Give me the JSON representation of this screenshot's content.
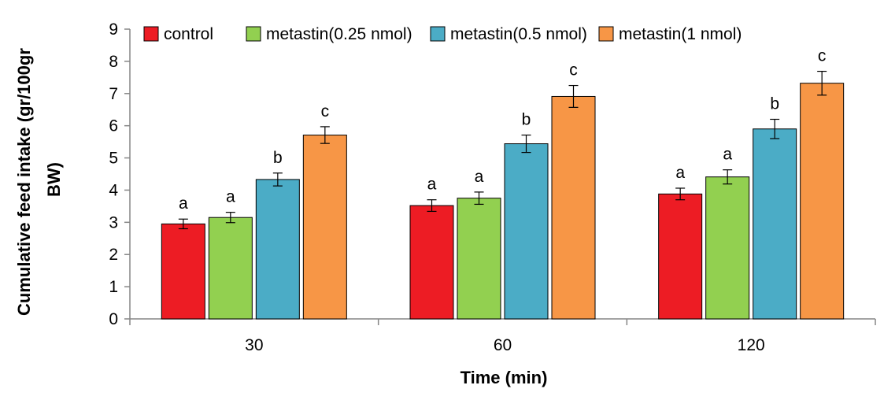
{
  "chart_data": {
    "type": "bar",
    "title": "",
    "xlabel": "Time (min)",
    "ylabel_lines": [
      "Cumulative feed intake (gr/100gr",
      "BW)"
    ],
    "categories": [
      "30",
      "60",
      "120"
    ],
    "ylim": [
      0,
      9
    ],
    "yticks": [
      0,
      1,
      2,
      3,
      4,
      5,
      6,
      7,
      8,
      9
    ],
    "grid": false,
    "legend_position": "top",
    "series": [
      {
        "name": "control",
        "color": "#ED1C24",
        "values": [
          2.95,
          3.52,
          3.88
        ],
        "errors": [
          0.15,
          0.18,
          0.18
        ],
        "labels": [
          "a",
          "a",
          "a"
        ]
      },
      {
        "name": "metastin(0.25 nmol)",
        "color": "#92D050",
        "values": [
          3.15,
          3.75,
          4.41
        ],
        "errors": [
          0.16,
          0.19,
          0.22
        ],
        "labels": [
          "a",
          "a",
          "a"
        ]
      },
      {
        "name": "metastin(0.5 nmol)",
        "color": "#4BACC6",
        "values": [
          4.33,
          5.44,
          5.9
        ],
        "errors": [
          0.2,
          0.27,
          0.3
        ],
        "labels": [
          "b",
          "b",
          "b"
        ]
      },
      {
        "name": "metastin(1 nmol)",
        "color": "#F79646",
        "values": [
          5.71,
          6.91,
          7.32
        ],
        "errors": [
          0.26,
          0.34,
          0.37
        ],
        "labels": [
          "c",
          "c",
          "c"
        ]
      }
    ]
  }
}
